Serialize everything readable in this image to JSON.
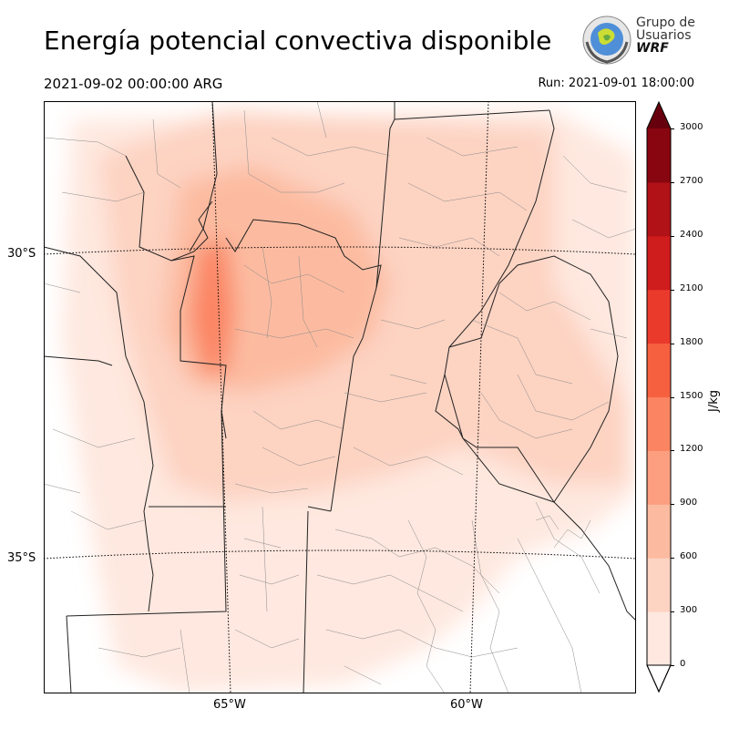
{
  "header": {
    "title": "Energía potencial convectiva disponible",
    "valid_time": "2021-09-02 00:00:00 ARG",
    "run_time": "Run: 2021-09-01 18:00:00"
  },
  "logo": {
    "line1": "Grupo de",
    "line2": "Usuarios",
    "line3": "WRF"
  },
  "map": {
    "lat_labels": [
      "30°S",
      "35°S"
    ],
    "lon_labels": [
      "65°W",
      "60°W"
    ]
  },
  "colorbar": {
    "unit": "J/kg",
    "ticks": [
      "0",
      "300",
      "600",
      "900",
      "1200",
      "1500",
      "1800",
      "2100",
      "2400",
      "2700",
      "3000"
    ],
    "colors": [
      "#fee8df",
      "#fdd3c2",
      "#fcbba0",
      "#fc9f80",
      "#fb8462",
      "#f6603f",
      "#ea3a2c",
      "#cf1c1d",
      "#b01217",
      "#87060f"
    ],
    "over_color": "#67000d",
    "under_color": "#ffffff"
  }
}
